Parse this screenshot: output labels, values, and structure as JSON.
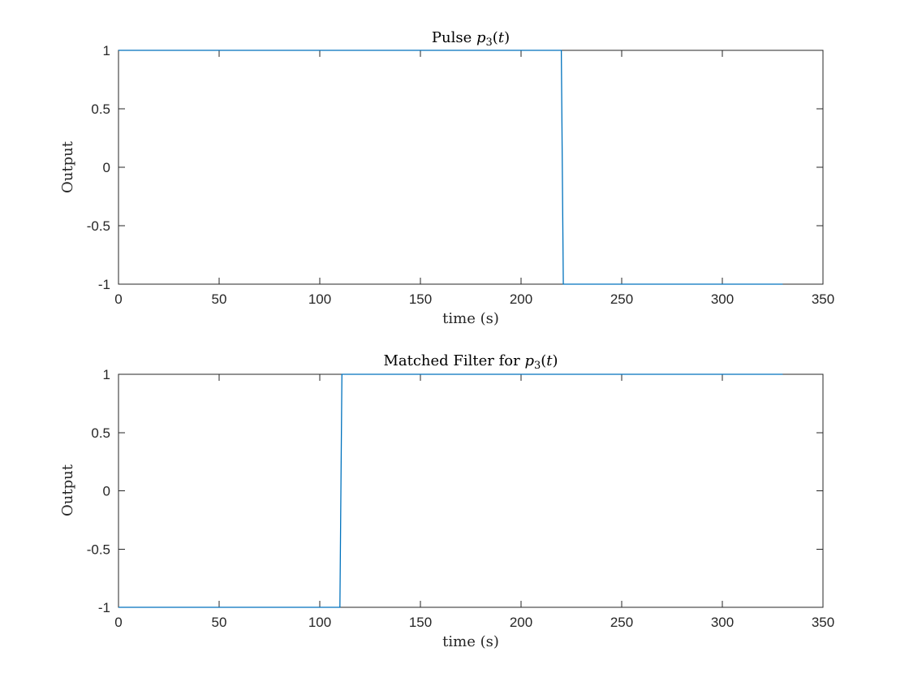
{
  "chart_data": [
    {
      "type": "line",
      "title": "Pulse p3(t)",
      "title_parts": {
        "prefix": "Pulse ",
        "var": "p",
        "sub": "3",
        "arg_open": "(",
        "arg": "t",
        "arg_close": ")"
      },
      "xlabel": "time (s)",
      "ylabel": "Output",
      "xlim": [
        0,
        350
      ],
      "ylim": [
        -1,
        1
      ],
      "xticks": [
        0,
        50,
        100,
        150,
        200,
        250,
        300,
        350
      ],
      "yticks": [
        -1,
        -0.5,
        0,
        0.5,
        1
      ],
      "xtick_labels": [
        "0",
        "50",
        "100",
        "150",
        "200",
        "250",
        "300",
        "350"
      ],
      "ytick_labels": [
        "-1",
        "-0.5",
        "0",
        "0.5",
        "1"
      ],
      "grid": false,
      "series": [
        {
          "color": "#0072bd",
          "x": [
            0,
            220,
            221,
            330
          ],
          "y": [
            1,
            1,
            -1,
            -1
          ]
        }
      ]
    },
    {
      "type": "line",
      "title": "Matched Filter for p3(t)",
      "title_parts": {
        "prefix": "Matched Filter for ",
        "var": "p",
        "sub": "3",
        "arg_open": "(",
        "arg": "t",
        "arg_close": ")"
      },
      "xlabel": "time (s)",
      "ylabel": "Output",
      "xlim": [
        0,
        350
      ],
      "ylim": [
        -1,
        1
      ],
      "xticks": [
        0,
        50,
        100,
        150,
        200,
        250,
        300,
        350
      ],
      "yticks": [
        -1,
        -0.5,
        0,
        0.5,
        1
      ],
      "xtick_labels": [
        "0",
        "50",
        "100",
        "150",
        "200",
        "250",
        "300",
        "350"
      ],
      "ytick_labels": [
        "-1",
        "-0.5",
        "0",
        "0.5",
        "1"
      ],
      "grid": false,
      "series": [
        {
          "color": "#0072bd",
          "x": [
            0,
            110,
            111,
            330
          ],
          "y": [
            -1,
            -1,
            1,
            1
          ]
        }
      ]
    }
  ]
}
